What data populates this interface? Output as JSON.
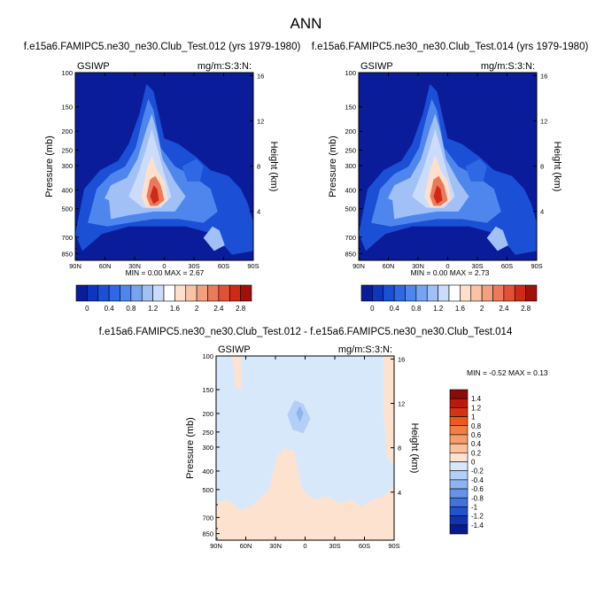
{
  "figure_title": "ANN",
  "chart_data": [
    {
      "type": "contour",
      "title": "f.e15a6.FAMIPC5.ne30_ne30.Club_Test.012 (yrs 1979-1980)",
      "left_label": "GSIWP",
      "right_label": "mg/m:S:3:N:",
      "ylabel": "Pressure (mb)",
      "y2label": "Height (km)",
      "x_ticks": [
        "90N",
        "60N",
        "30N",
        "0",
        "30S",
        "60S",
        "90S"
      ],
      "y_ticks": [
        "100",
        "150",
        "200",
        "250",
        "300",
        "400",
        "500",
        "700",
        "850"
      ],
      "y2_ticks": [
        "16",
        "12",
        "8",
        "4"
      ],
      "xlim": [
        -90,
        90
      ],
      "ylim": [
        100,
        1000
      ],
      "min_max_text": "MIN =  0.00  MAX =  2.67",
      "min": 0.0,
      "max": 2.67,
      "colorbar_labels": [
        "0",
        "0.4",
        "0.8",
        "1.2",
        "1.6",
        "2",
        "2.4",
        "2.8"
      ],
      "colorbar_levels": [
        0,
        0.2,
        0.4,
        0.6,
        0.8,
        1.0,
        1.2,
        1.4,
        1.6,
        1.8,
        2.0,
        2.2,
        2.4,
        2.6,
        2.8
      ],
      "colorbar_colors": [
        "#0a1c9a",
        "#0f35c0",
        "#1a4fd6",
        "#2f68e4",
        "#4f86ee",
        "#76a3f2",
        "#a1c0f6",
        "#cadcfa",
        "#ffffff",
        "#fde0cc",
        "#f8c3a6",
        "#f2a07f",
        "#ec7a5a",
        "#e25137",
        "#cf2a16",
        "#a3100a"
      ],
      "fields": [
        {
          "level": 0.2,
          "fill": "#0f35c0",
          "shape": "envelope"
        },
        {
          "level": 0.4,
          "fill": "#2f68e4",
          "shape": "tower-wide"
        },
        {
          "level": 0.8,
          "fill": "#76a3f2",
          "shape": "tower"
        },
        {
          "level": 1.2,
          "fill": "#cadcfa",
          "shape": "core"
        },
        {
          "level": 1.6,
          "fill": "#f8c3a6",
          "shape": "twin"
        },
        {
          "level": 2.2,
          "fill": "#ec7a5a",
          "shape": "twin-inner"
        },
        {
          "level": 2.6,
          "fill": "#cf2a16",
          "shape": "twin-peak"
        }
      ]
    },
    {
      "type": "contour",
      "title": "f.e15a6.FAMIPC5.ne30_ne30.Club_Test.014 (yrs 1979-1980)",
      "left_label": "GSIWP",
      "right_label": "mg/m:S:3:N:",
      "ylabel": "Pressure (mb)",
      "y2label": "Height (km)",
      "x_ticks": [
        "90N",
        "60N",
        "30N",
        "0",
        "30S",
        "60S",
        "90S"
      ],
      "y_ticks": [
        "100",
        "150",
        "200",
        "250",
        "300",
        "400",
        "500",
        "700",
        "850"
      ],
      "y2_ticks": [
        "16",
        "12",
        "8",
        "4"
      ],
      "xlim": [
        -90,
        90
      ],
      "ylim": [
        100,
        1000
      ],
      "min_max_text": "MIN =  0.00  MAX =  2.73",
      "min": 0.0,
      "max": 2.73,
      "colorbar_labels": [
        "0",
        "0.4",
        "0.8",
        "1.2",
        "1.6",
        "2",
        "2.4",
        "2.8"
      ],
      "colorbar_levels": [
        0,
        0.2,
        0.4,
        0.6,
        0.8,
        1.0,
        1.2,
        1.4,
        1.6,
        1.8,
        2.0,
        2.2,
        2.4,
        2.6,
        2.8
      ],
      "colorbar_colors": [
        "#0a1c9a",
        "#0f35c0",
        "#1a4fd6",
        "#2f68e4",
        "#4f86ee",
        "#76a3f2",
        "#a1c0f6",
        "#cadcfa",
        "#ffffff",
        "#fde0cc",
        "#f8c3a6",
        "#f2a07f",
        "#ec7a5a",
        "#e25137",
        "#cf2a16",
        "#a3100a"
      ]
    },
    {
      "type": "contour-difference",
      "title": "f.e15a6.FAMIPC5.ne30_ne30.Club_Test.012 - f.e15a6.FAMIPC5.ne30_ne30.Club_Test.014",
      "left_label": "GSIWP",
      "right_label": "mg/m:S:3:N:",
      "ylabel": "Pressure (mb)",
      "y2label": "Height (km)",
      "x_ticks": [
        "90N",
        "60N",
        "30N",
        "0",
        "30S",
        "60S",
        "90S"
      ],
      "y_ticks": [
        "100",
        "150",
        "200",
        "250",
        "300",
        "400",
        "500",
        "700",
        "850"
      ],
      "y2_ticks": [
        "16",
        "12",
        "8",
        "4"
      ],
      "xlim": [
        -90,
        90
      ],
      "ylim": [
        100,
        1000
      ],
      "min_max_text": "MIN = -0.52  MAX =  0.13",
      "min": -0.52,
      "max": 0.13,
      "colorbar_labels": [
        "1.4",
        "1.2",
        "1",
        "0.8",
        "0.6",
        "0.4",
        "0.2",
        "0",
        "-0.2",
        "-0.4",
        "-0.6",
        "-0.8",
        "-1",
        "-1.2",
        "-1.4"
      ],
      "colorbar_levels": [
        1.4,
        1.2,
        1.0,
        0.8,
        0.6,
        0.4,
        0.2,
        0,
        -0.2,
        -0.4,
        -0.6,
        -0.8,
        -1.0,
        -1.2,
        -1.4
      ],
      "colorbar_colors": [
        "#8b0a0a",
        "#b81a0c",
        "#d63310",
        "#ee5a1e",
        "#f47c45",
        "#f79d6d",
        "#fbbf9a",
        "#fde3cf",
        "#d8e8fb",
        "#b4cff7",
        "#8db3f1",
        "#6693e8",
        "#4273dd",
        "#2452cc",
        "#1233b1",
        "#081b8c"
      ]
    }
  ]
}
